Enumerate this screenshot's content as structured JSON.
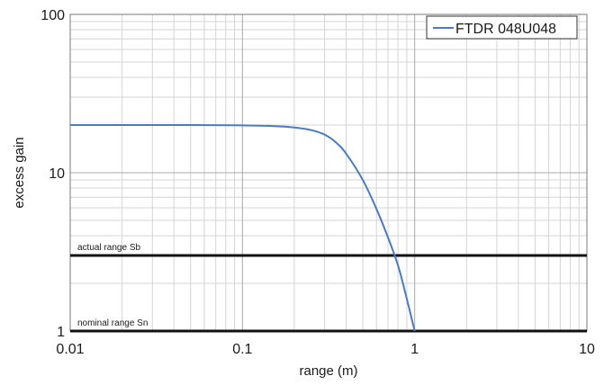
{
  "chart_data": {
    "type": "line",
    "xlabel": "range (m)",
    "ylabel": "excess gain",
    "xscale": "log",
    "yscale": "log",
    "xlim": [
      0.01,
      10
    ],
    "ylim": [
      1,
      100
    ],
    "grid": true,
    "legend_position": "top-right",
    "x_ticks": [
      {
        "value": 0.01,
        "label": "0.01"
      },
      {
        "value": 0.1,
        "label": "0.1"
      },
      {
        "value": 1,
        "label": "1"
      },
      {
        "value": 10,
        "label": "10"
      }
    ],
    "y_ticks": [
      {
        "value": 1,
        "label": "1"
      },
      {
        "value": 10,
        "label": "10"
      },
      {
        "value": 100,
        "label": "100"
      }
    ],
    "series": [
      {
        "name": "FTDR 048U048",
        "color": "#4a7bbf",
        "x": [
          0.01,
          0.05,
          0.1,
          0.15,
          0.2,
          0.25,
          0.3,
          0.35,
          0.4,
          0.5,
          0.6,
          0.7,
          0.8,
          0.9,
          1.0
        ],
        "y": [
          20,
          20,
          19.9,
          19.7,
          19.3,
          18.6,
          17.4,
          15.5,
          13.2,
          9.0,
          5.9,
          3.9,
          2.6,
          1.6,
          1.0
        ]
      }
    ],
    "reference_lines": [
      {
        "label": "actual range Sb",
        "y": 3,
        "color": "#111111"
      },
      {
        "label": "nominal range Sn",
        "y": 1,
        "color": "#111111"
      }
    ]
  }
}
